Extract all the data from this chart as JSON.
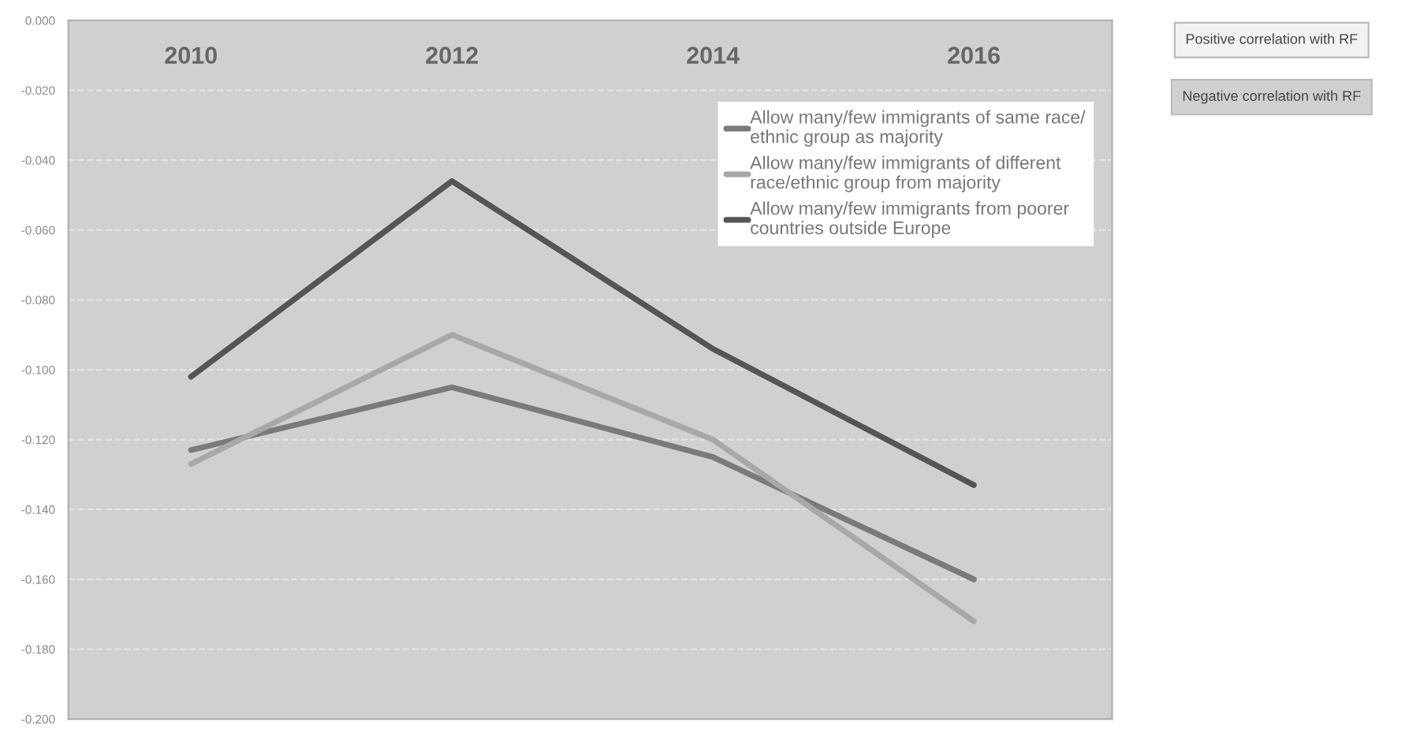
{
  "chart_data": {
    "type": "line",
    "categories": [
      "2010",
      "2012",
      "2014",
      "2016"
    ],
    "series": [
      {
        "name": "Allow many/few immigrants of same race/ ethnic group as majority",
        "color": "#7a7a7a",
        "values": [
          -0.123,
          -0.105,
          -0.125,
          -0.16
        ]
      },
      {
        "name": "Allow many/few immigrants of different race/ethnic group from majority",
        "color": "#a8a8a8",
        "values": [
          -0.127,
          -0.09,
          -0.12,
          -0.172
        ]
      },
      {
        "name": "Allow many/few immigrants from poorer countries outside Europe",
        "color": "#555555",
        "values": [
          -0.102,
          -0.046,
          -0.094,
          -0.133
        ]
      }
    ],
    "ylim": [
      -0.2,
      0
    ],
    "yticks": [
      {
        "value": 0,
        "label": "0.000"
      },
      {
        "value": -0.02,
        "label": "-0.020"
      },
      {
        "value": -0.04,
        "label": "-0.040"
      },
      {
        "value": -0.06,
        "label": "-0.060"
      },
      {
        "value": -0.08,
        "label": "-0.080"
      },
      {
        "value": -0.1,
        "label": "-0.100"
      },
      {
        "value": -0.12,
        "label": "-0.120"
      },
      {
        "value": -0.14,
        "label": "-0.140"
      },
      {
        "value": -0.16,
        "label": "-0.160"
      },
      {
        "value": -0.18,
        "label": "-0.180"
      },
      {
        "value": -0.2,
        "label": "-0.200"
      }
    ],
    "grid": "y",
    "legend": "top right",
    "line_style": "solid",
    "marker": "none",
    "annotations": [
      "Positive correlation with RF",
      "Negative correlation with RF"
    ]
  }
}
